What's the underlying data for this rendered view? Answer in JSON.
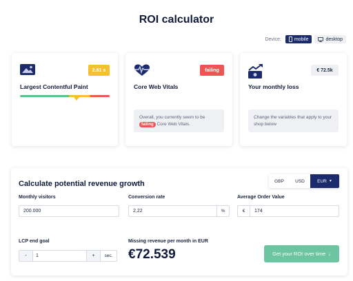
{
  "page": {
    "title": "ROI calculator"
  },
  "device": {
    "label": "Device:",
    "options": [
      {
        "label": "mobile",
        "icon": "mobile-icon",
        "active": true
      },
      {
        "label": "desktop",
        "icon": "desktop-icon",
        "active": false
      }
    ]
  },
  "cards": {
    "lcp": {
      "label": "Largest Contentful Paint",
      "badge": "2.81 s",
      "badge_color": "#f5c030",
      "icon": "image-icon",
      "marker_fraction": 0.63
    },
    "cwv": {
      "label": "Core Web Vitals",
      "badge": "failing",
      "badge_color": "#ef5454",
      "icon": "heartbeat-icon",
      "info_pre": "Overall, you currently seem to be",
      "info_badge": "failing",
      "info_post": "Core Web Vitals."
    },
    "loss": {
      "label": "Your monthly loss",
      "badge": "€ 72.5k",
      "icon": "money-trend-icon",
      "info": "Change the variables that apply to your shop below"
    }
  },
  "calculator": {
    "title": "Calculate potential revenue growth",
    "currencies": [
      "GBP",
      "USD",
      "EUR"
    ],
    "active_currency": "EUR",
    "monthly_visitors": {
      "label": "Monthly visitors",
      "value": "200.000"
    },
    "conversion_rate": {
      "label": "Conversion rate",
      "value": "2,22",
      "suffix": "%"
    },
    "aov": {
      "label": "Average Order Value",
      "prefix": "€",
      "value": "174"
    },
    "lcp_goal": {
      "label": "LCP end goal",
      "minus": "-",
      "value": "1",
      "plus": "+",
      "unit": "sec."
    },
    "missing": {
      "label": "Missing revenue per month in EUR",
      "value": "€72.539"
    },
    "cta": {
      "label": "Get your ROI over time",
      "arrow": "↓"
    }
  },
  "colors": {
    "navy": "#1c2b6b",
    "green": "#6cc5a0",
    "red": "#ef5454",
    "yellow": "#f5c030"
  }
}
